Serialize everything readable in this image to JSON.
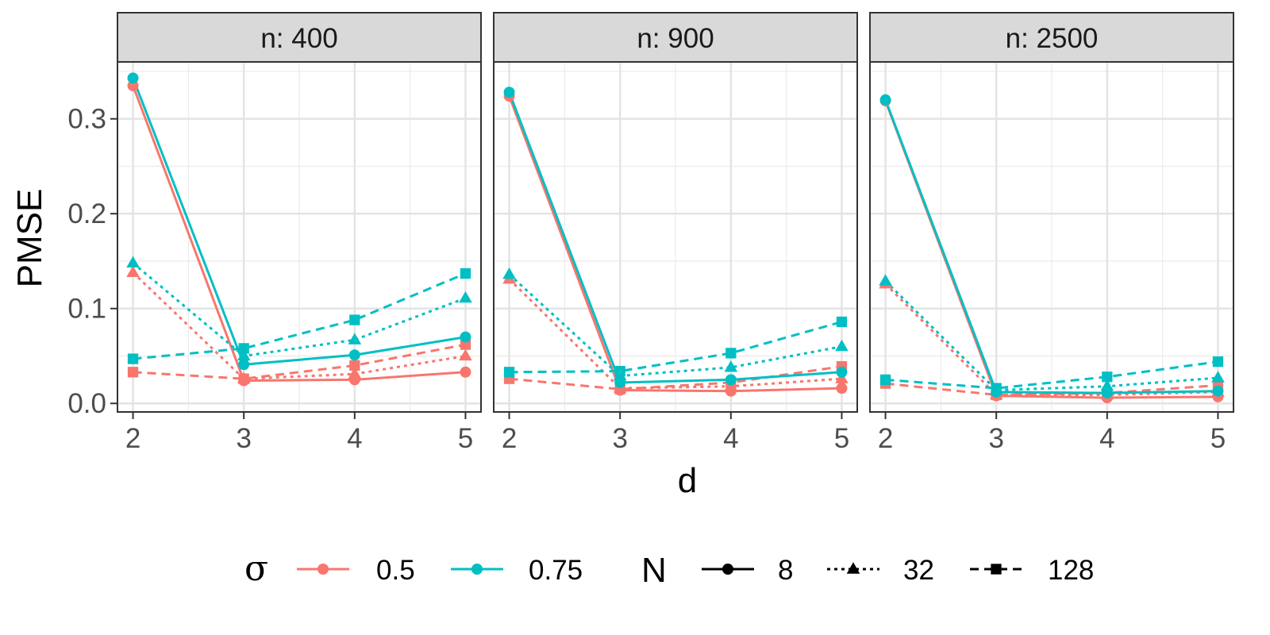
{
  "chart_data": {
    "type": "line",
    "xlabel": "d",
    "ylabel": "PMSE",
    "x": [
      2,
      3,
      4,
      5
    ],
    "xlim": [
      1.86,
      5.14
    ],
    "ylim": [
      -0.009,
      0.36
    ],
    "yticks": [
      0.0,
      0.1,
      0.2,
      0.3
    ],
    "ytick_labels": [
      "0.0",
      "0.1",
      "0.2",
      "0.3"
    ],
    "grid": true,
    "colors": {
      "0.5": "#F8766D",
      "0.75": "#00BFC4"
    },
    "legend": {
      "placement": "bottom",
      "groups": [
        {
          "title": "σ",
          "entries": [
            {
              "label": "0.5",
              "color": "#F8766D"
            },
            {
              "label": "0.75",
              "color": "#00BFC4"
            }
          ]
        },
        {
          "title": "N",
          "entries": [
            {
              "label": "8",
              "linetype": "solid",
              "shape": "circle"
            },
            {
              "label": "32",
              "linetype": "dotted",
              "shape": "triangle"
            },
            {
              "label": "128",
              "linetype": "dashed",
              "shape": "square"
            }
          ]
        }
      ]
    },
    "panels": [
      {
        "strip": "n: 400",
        "series": [
          {
            "sigma": "0.5",
            "N": "8",
            "values": [
              0.335,
              0.024,
              0.025,
              0.033
            ]
          },
          {
            "sigma": "0.5",
            "N": "32",
            "values": [
              0.138,
              0.026,
              0.031,
              0.05
            ]
          },
          {
            "sigma": "0.5",
            "N": "128",
            "values": [
              0.033,
              0.026,
              0.04,
              0.062
            ]
          },
          {
            "sigma": "0.75",
            "N": "8",
            "values": [
              0.343,
              0.041,
              0.051,
              0.07
            ]
          },
          {
            "sigma": "0.75",
            "N": "32",
            "values": [
              0.148,
              0.05,
              0.067,
              0.111
            ]
          },
          {
            "sigma": "0.75",
            "N": "128",
            "values": [
              0.047,
              0.058,
              0.088,
              0.137
            ]
          }
        ]
      },
      {
        "strip": "n: 900",
        "series": [
          {
            "sigma": "0.5",
            "N": "8",
            "values": [
              0.324,
              0.014,
              0.013,
              0.016
            ]
          },
          {
            "sigma": "0.5",
            "N": "32",
            "values": [
              0.131,
              0.016,
              0.018,
              0.026
            ]
          },
          {
            "sigma": "0.5",
            "N": "128",
            "values": [
              0.026,
              0.015,
              0.022,
              0.039
            ]
          },
          {
            "sigma": "0.75",
            "N": "8",
            "values": [
              0.328,
              0.022,
              0.025,
              0.033
            ]
          },
          {
            "sigma": "0.75",
            "N": "32",
            "values": [
              0.136,
              0.029,
              0.038,
              0.06
            ]
          },
          {
            "sigma": "0.75",
            "N": "128",
            "values": [
              0.033,
              0.034,
              0.053,
              0.086
            ]
          }
        ]
      },
      {
        "strip": "n: 2500",
        "series": [
          {
            "sigma": "0.5",
            "N": "8",
            "values": [
              0.319,
              0.008,
              0.006,
              0.007
            ]
          },
          {
            "sigma": "0.5",
            "N": "32",
            "values": [
              0.126,
              0.009,
              0.009,
              0.012
            ]
          },
          {
            "sigma": "0.5",
            "N": "128",
            "values": [
              0.021,
              0.009,
              0.011,
              0.019
            ]
          },
          {
            "sigma": "0.75",
            "N": "8",
            "values": [
              0.32,
              0.012,
              0.011,
              0.013
            ]
          },
          {
            "sigma": "0.75",
            "N": "32",
            "values": [
              0.129,
              0.014,
              0.018,
              0.027
            ]
          },
          {
            "sigma": "0.75",
            "N": "128",
            "values": [
              0.025,
              0.016,
              0.028,
              0.044
            ]
          }
        ]
      }
    ]
  }
}
